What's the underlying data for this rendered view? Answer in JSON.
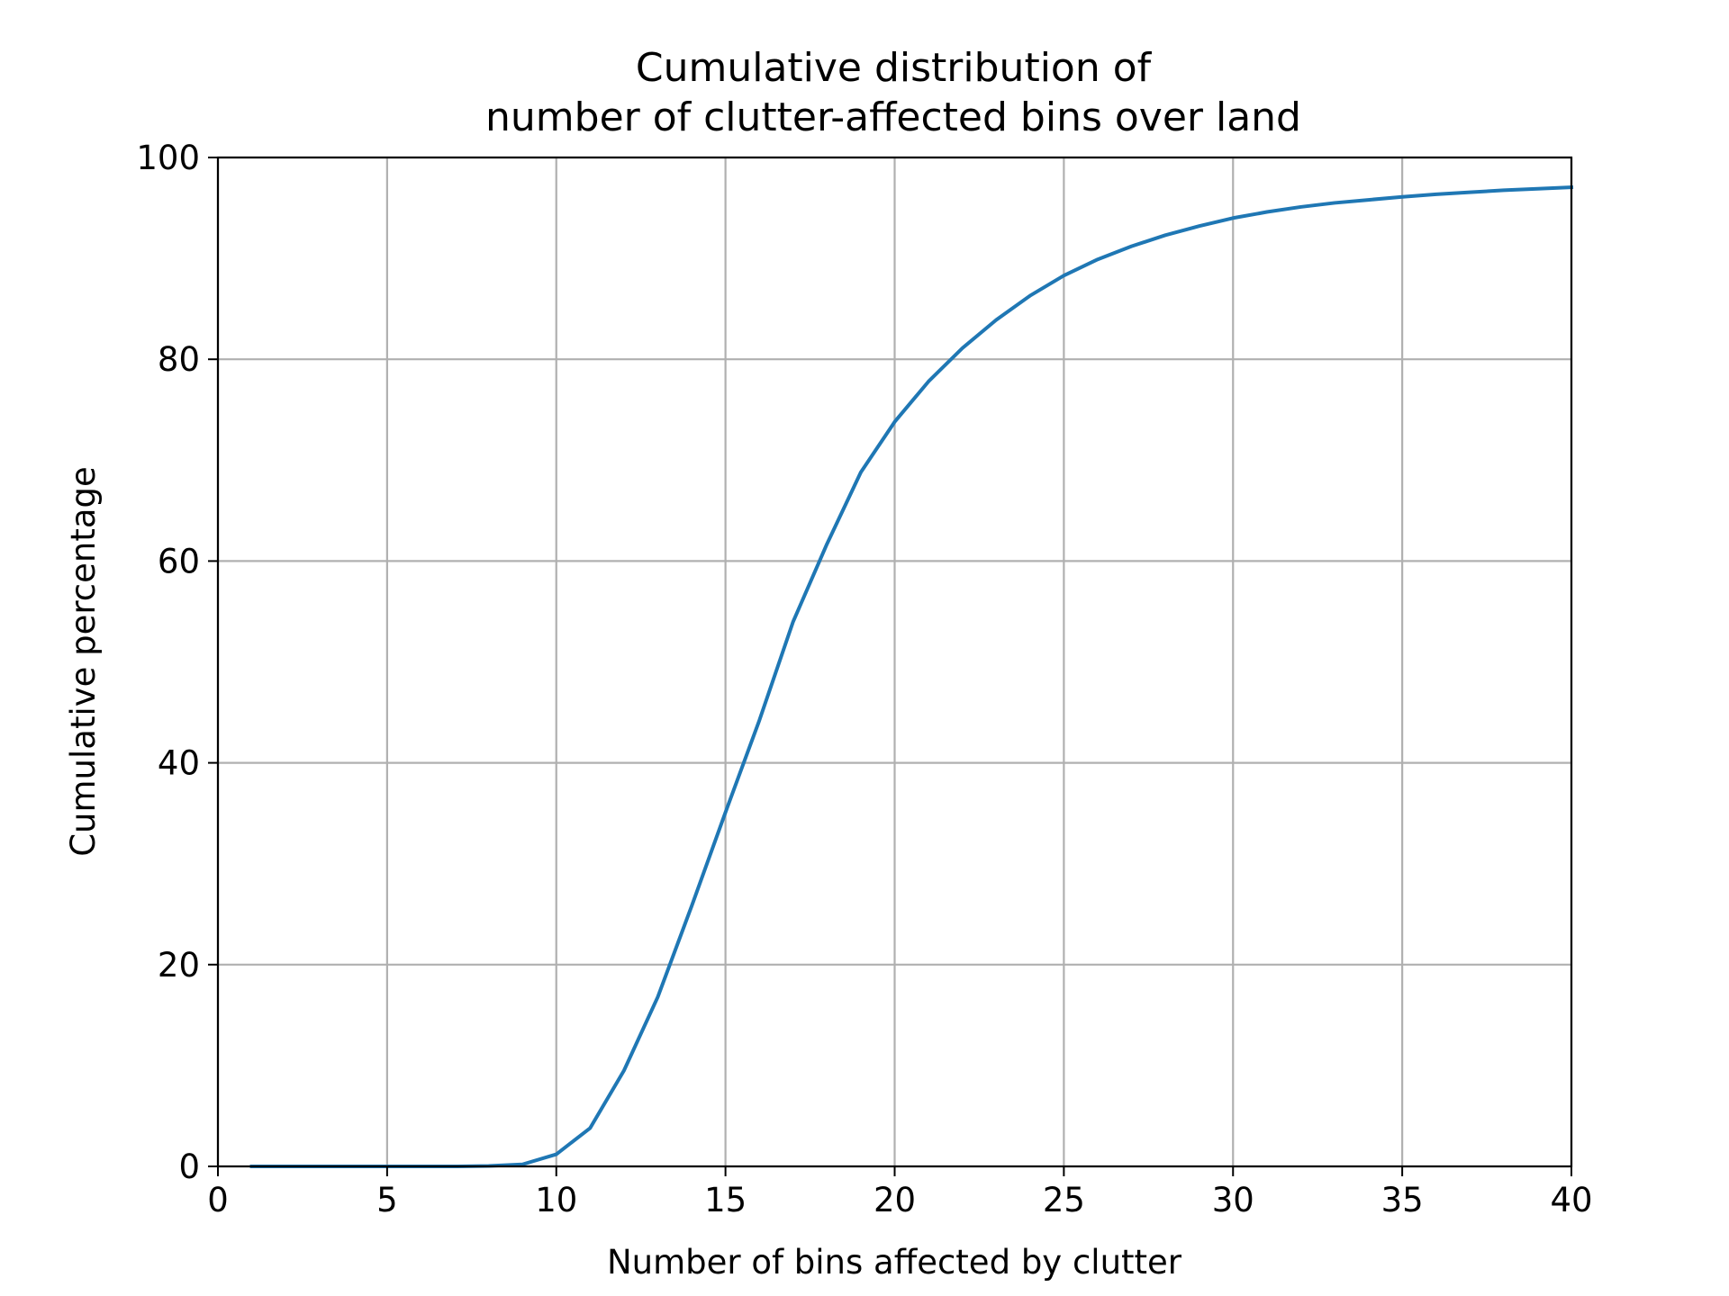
{
  "chart_data": {
    "type": "line",
    "title": [
      "Cumulative distribution of",
      "number of clutter-affected bins over land"
    ],
    "xlabel": "Number of bins affected by clutter",
    "ylabel": "Cumulative percentage",
    "xlim": [
      0,
      40
    ],
    "ylim": [
      0,
      100
    ],
    "xticks": [
      0,
      5,
      10,
      15,
      20,
      25,
      30,
      35,
      40
    ],
    "xtick_labels": [
      "0",
      "5",
      "10",
      "15",
      "20",
      "25",
      "30",
      "35",
      "40"
    ],
    "yticks": [
      0,
      20,
      40,
      60,
      80,
      100
    ],
    "ytick_labels": [
      "0",
      "20",
      "40",
      "60",
      "80",
      "100"
    ],
    "grid": true,
    "series": [
      {
        "color": "#1f77b4",
        "x": [
          1,
          2,
          3,
          4,
          5,
          6,
          7,
          8,
          9,
          10,
          11,
          12,
          13,
          14,
          15,
          16,
          17,
          18,
          19,
          20,
          21,
          22,
          23,
          24,
          25,
          26,
          27,
          28,
          29,
          30,
          31,
          32,
          33,
          34,
          35,
          36,
          37,
          38,
          39,
          40
        ],
        "y": [
          0,
          0,
          0,
          0,
          0,
          0,
          0,
          0.05,
          0.2,
          1.2,
          3.8,
          9.5,
          16.8,
          25.8,
          35.1,
          44.2,
          54.0,
          61.7,
          68.8,
          73.8,
          77.8,
          81.1,
          83.9,
          86.3,
          88.3,
          89.9,
          91.2,
          92.3,
          93.2,
          94.0,
          94.6,
          95.1,
          95.5,
          95.8,
          96.1,
          96.35,
          96.55,
          96.75,
          96.9,
          97.05
        ]
      }
    ]
  }
}
